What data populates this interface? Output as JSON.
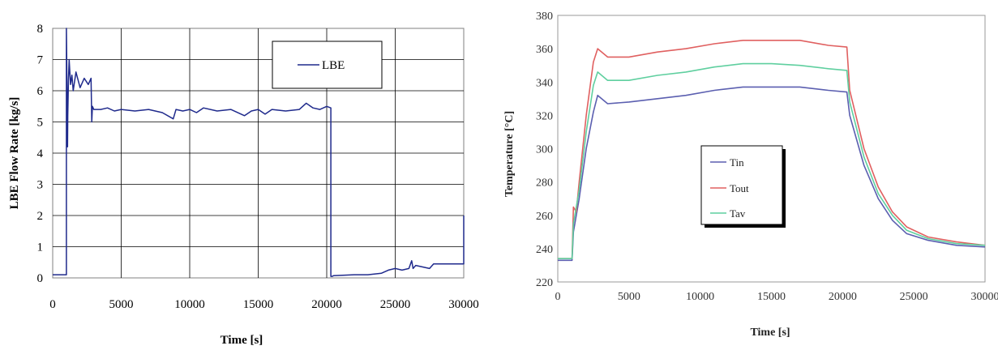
{
  "chart_data": [
    {
      "type": "line",
      "title": "",
      "xlabel": "Time [s]",
      "ylabel": "LBE Flow Rate [kg/s]",
      "xlim": [
        0,
        30000
      ],
      "ylim": [
        0,
        8
      ],
      "xticks": [
        0,
        5000,
        10000,
        15000,
        20000,
        25000,
        30000
      ],
      "yticks": [
        0,
        1,
        2,
        3,
        4,
        5,
        6,
        7,
        8
      ],
      "grid": true,
      "legend": "top-right",
      "series": [
        {
          "name": "LBE",
          "color": "#1f2a8c",
          "x": [
            0,
            1000,
            1000,
            1050,
            1080,
            1100,
            1150,
            1200,
            1300,
            1400,
            1500,
            1700,
            2000,
            2300,
            2600,
            2800,
            2850,
            2900,
            3000,
            3500,
            4000,
            4500,
            5000,
            6000,
            7000,
            8000,
            8800,
            9000,
            9500,
            10000,
            10500,
            11000,
            12000,
            13000,
            14000,
            14500,
            15000,
            15500,
            16000,
            17000,
            18000,
            18500,
            19000,
            19500,
            20000,
            20300,
            20300,
            20400,
            20500,
            21000,
            22000,
            23000,
            24000,
            24500,
            25000,
            25500,
            26000,
            26200,
            26300,
            26500,
            27000,
            27500,
            27800,
            28000,
            29000,
            30000,
            30000
          ],
          "y": [
            0.1,
            0.1,
            8.0,
            6.0,
            4.2,
            5.2,
            6.3,
            7.0,
            6.2,
            6.5,
            6.0,
            6.6,
            6.1,
            6.4,
            6.2,
            6.4,
            5.0,
            5.5,
            5.4,
            5.4,
            5.45,
            5.35,
            5.4,
            5.35,
            5.4,
            5.3,
            5.1,
            5.4,
            5.35,
            5.4,
            5.3,
            5.45,
            5.35,
            5.4,
            5.2,
            5.35,
            5.4,
            5.25,
            5.4,
            5.35,
            5.4,
            5.6,
            5.45,
            5.4,
            5.5,
            5.45,
            0.05,
            0.05,
            0.07,
            0.08,
            0.1,
            0.1,
            0.15,
            0.25,
            0.3,
            0.25,
            0.3,
            0.55,
            0.3,
            0.4,
            0.35,
            0.3,
            0.45,
            0.45,
            0.45,
            0.45,
            2.0
          ]
        }
      ]
    },
    {
      "type": "line",
      "title": "",
      "xlabel": "Time [s]",
      "ylabel": "Temperature [°C]",
      "xlim": [
        0,
        30000
      ],
      "ylim": [
        220,
        380
      ],
      "xticks": [
        0,
        5000,
        10000,
        15000,
        20000,
        25000,
        30000
      ],
      "yticks": [
        220,
        240,
        260,
        280,
        300,
        320,
        340,
        360,
        380
      ],
      "grid": false,
      "legend": "center",
      "series": [
        {
          "name": "Tin",
          "color": "#5b5fb0",
          "x": [
            0,
            1000,
            1100,
            1500,
            2000,
            2500,
            2800,
            3500,
            5000,
            7000,
            9000,
            11000,
            13000,
            15000,
            17000,
            19000,
            20300,
            20500,
            21500,
            22500,
            23500,
            24500,
            26000,
            28000,
            30000
          ],
          "y": [
            233,
            233,
            250,
            270,
            300,
            322,
            332,
            327,
            328,
            330,
            332,
            335,
            337,
            337,
            337,
            335,
            334,
            320,
            290,
            270,
            257,
            249,
            245,
            242,
            241
          ]
        },
        {
          "name": "Tout",
          "color": "#e06060",
          "x": [
            0,
            1000,
            1100,
            1300,
            1500,
            2000,
            2500,
            2800,
            3500,
            5000,
            7000,
            9000,
            11000,
            13000,
            15000,
            17000,
            19000,
            20300,
            20500,
            21500,
            22500,
            23500,
            24500,
            26000,
            28000,
            30000
          ],
          "y": [
            234,
            234,
            265,
            262,
            280,
            320,
            352,
            360,
            355,
            355,
            358,
            360,
            363,
            365,
            365,
            365,
            362,
            361,
            335,
            300,
            277,
            262,
            253,
            247,
            244,
            242
          ]
        },
        {
          "name": "Tav",
          "color": "#5fcf9f",
          "x": [
            0,
            1000,
            1100,
            1500,
            2000,
            2500,
            2800,
            3500,
            5000,
            7000,
            9000,
            11000,
            13000,
            15000,
            17000,
            19000,
            20300,
            20500,
            21500,
            22500,
            23500,
            24500,
            26000,
            28000,
            30000
          ],
          "y": [
            234,
            234,
            255,
            275,
            310,
            338,
            346,
            341,
            341,
            344,
            346,
            349,
            351,
            351,
            350,
            348,
            347,
            328,
            295,
            273,
            260,
            251,
            246,
            243,
            242
          ]
        }
      ]
    }
  ]
}
